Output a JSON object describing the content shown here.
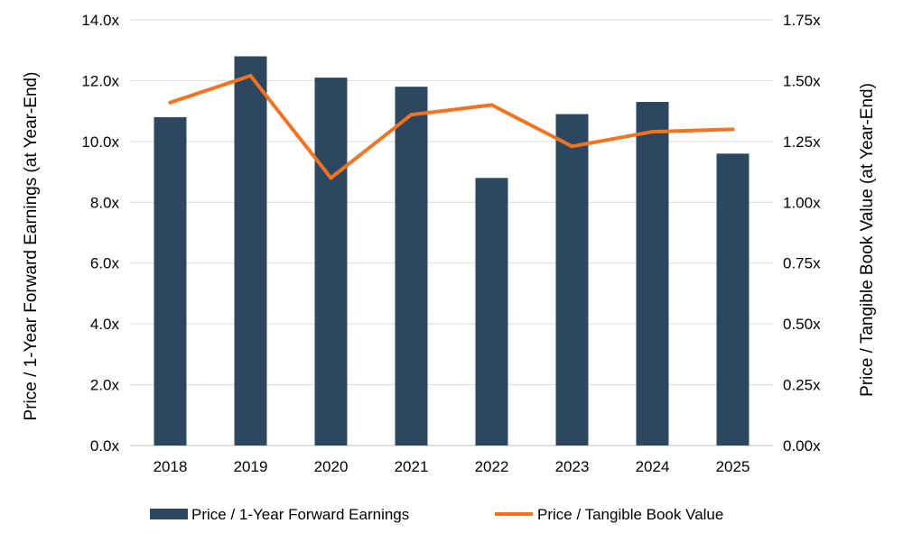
{
  "chart_data": {
    "type": "bar+line",
    "title": "",
    "categories": [
      "2018",
      "2019",
      "2020",
      "2021",
      "2022",
      "2023",
      "2024",
      "2025"
    ],
    "series": [
      {
        "name": "Price / 1-Year Forward Earnings",
        "type": "bar",
        "axis": "left",
        "color": "#2E4761",
        "values": [
          10.8,
          12.8,
          12.1,
          11.8,
          8.8,
          10.9,
          11.3,
          9.6
        ]
      },
      {
        "name": "Price / Tangible Book Value",
        "type": "line",
        "axis": "right",
        "color": "#F47322",
        "values": [
          1.41,
          1.52,
          1.1,
          1.36,
          1.4,
          1.23,
          1.29,
          1.3
        ]
      }
    ],
    "y_left": {
      "label": "Price / 1-Year Forward Earnings (at Year-End)",
      "ylim": [
        0,
        14
      ],
      "ticks": [
        0,
        2,
        4,
        6,
        8,
        10,
        12,
        14
      ],
      "tick_labels": [
        "0.0x",
        "2.0x",
        "4.0x",
        "6.0x",
        "8.0x",
        "10.0x",
        "12.0x",
        "14.0x"
      ]
    },
    "y_right": {
      "label": "Price / Tangible Book Value (at Year-End)",
      "ylim": [
        0,
        1.75
      ],
      "ticks": [
        0,
        0.25,
        0.5,
        0.75,
        1.0,
        1.25,
        1.5,
        1.75
      ],
      "tick_labels": [
        "0.00x",
        "0.25x",
        "0.50x",
        "0.75x",
        "1.00x",
        "1.25x",
        "1.50x",
        "1.75x"
      ]
    },
    "grid": true,
    "legend_position": "bottom"
  }
}
